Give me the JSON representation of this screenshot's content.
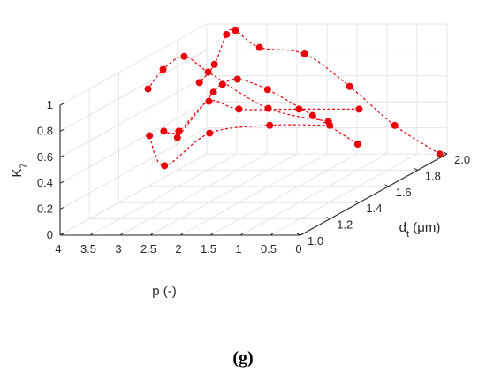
{
  "chart_data": {
    "type": "line3d",
    "axes": {
      "x": {
        "label": "p (-)",
        "range": [
          0,
          4
        ],
        "ticks": [
          "0",
          "0.5",
          "1",
          "1.5",
          "2",
          "2.5",
          "3",
          "3.5",
          "4"
        ]
      },
      "y": {
        "label_main": "d",
        "label_sub": "t",
        "label_tail": " (μm)",
        "range": [
          1.0,
          2.0
        ],
        "ticks": [
          "1.0",
          "1.2",
          "1.4",
          "1.6",
          "1.8",
          "2.0"
        ]
      },
      "z": {
        "label_main": "K",
        "label_sub": "7",
        "range": [
          0,
          1
        ],
        "ticks": [
          "0",
          "0.2",
          "0.4",
          "0.6",
          "0.8",
          "1"
        ]
      }
    },
    "grid": true,
    "line_style": "dashed",
    "color": "#e8000b",
    "series": [
      {
        "x": [
          0,
          0.75,
          1.5,
          2.25,
          3.0,
          3.4,
          3.55,
          3.75,
          4.0
        ],
        "y": [
          1.95,
          1.95,
          1.95,
          1.95,
          1.95,
          1.95,
          1.95,
          1.95,
          1.95
        ],
        "z": [
          0.03,
          0.25,
          0.55,
          0.8,
          0.85,
          0.98,
          0.95,
          0.72,
          0.58
        ]
      },
      {
        "x": [
          1.0,
          1.75,
          2.5,
          3.0,
          3.25,
          3.4,
          4.0
        ],
        "y": [
          1.8,
          1.8,
          1.8,
          1.8,
          1.8,
          1.8,
          1.8
        ],
        "z": [
          0.2,
          0.42,
          0.62,
          0.7,
          0.66,
          0.6,
          0.25
        ]
      },
      {
        "x": [
          1.0,
          2.0,
          3.0,
          3.4,
          3.75,
          4.0
        ],
        "y": [
          1.6,
          1.6,
          1.6,
          1.6,
          1.6,
          1.6
        ],
        "z": [
          0.5,
          0.6,
          0.88,
          1.0,
          0.9,
          0.75
        ]
      },
      {
        "x": [
          0,
          1.0,
          2.0,
          2.5,
          3.0,
          3.25
        ],
        "y": [
          1.4,
          1.4,
          1.4,
          1.4,
          1.4,
          1.4
        ],
        "z": [
          0.72,
          0.72,
          0.72,
          0.78,
          0.55,
          0.55
        ]
      },
      {
        "x": [
          0,
          1.0,
          2.0,
          2.75,
          3.0
        ],
        "y": [
          1.2,
          1.2,
          1.2,
          1.2,
          1.2
        ],
        "z": [
          0.72,
          0.72,
          0.66,
          0.41,
          0.64
        ]
      }
    ]
  },
  "caption": "(g)"
}
